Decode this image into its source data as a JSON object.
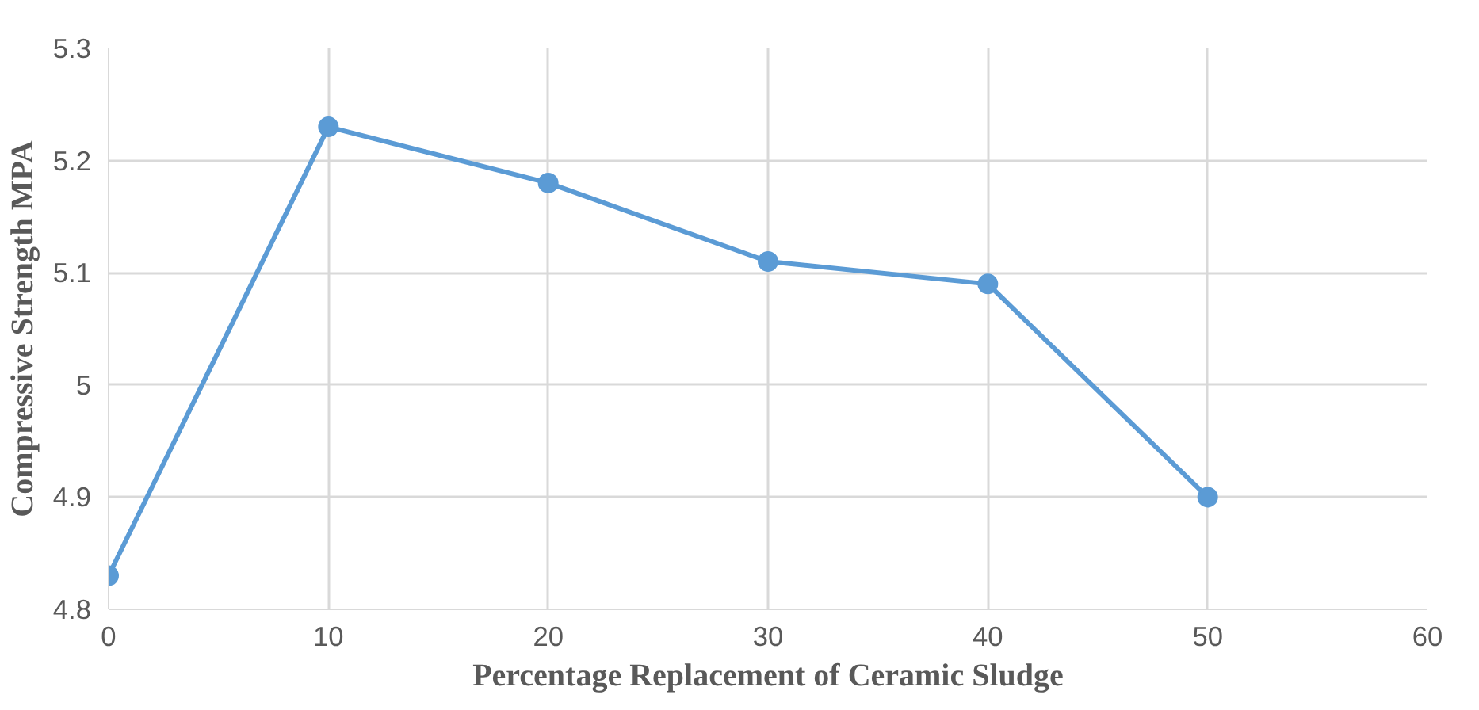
{
  "chart_data": {
    "type": "line",
    "xlabel": "Percentage Replacement of Ceramic Sludge",
    "ylabel": "Compressive Strength MPA",
    "x": [
      0,
      10,
      20,
      30,
      40,
      50
    ],
    "series": [
      {
        "color": "#5b9bd5",
        "values": [
          4.83,
          5.23,
          5.18,
          5.11,
          5.09,
          4.9
        ]
      }
    ],
    "xlim": [
      0,
      60
    ],
    "xticks": [
      0,
      10,
      20,
      30,
      40,
      50,
      60
    ],
    "ylim": [
      4.8,
      5.3
    ],
    "yticks": [
      4.8,
      4.9,
      5,
      5.1,
      5.2,
      5.3
    ],
    "grid": true,
    "marker": "circle",
    "line_style": "solid"
  }
}
